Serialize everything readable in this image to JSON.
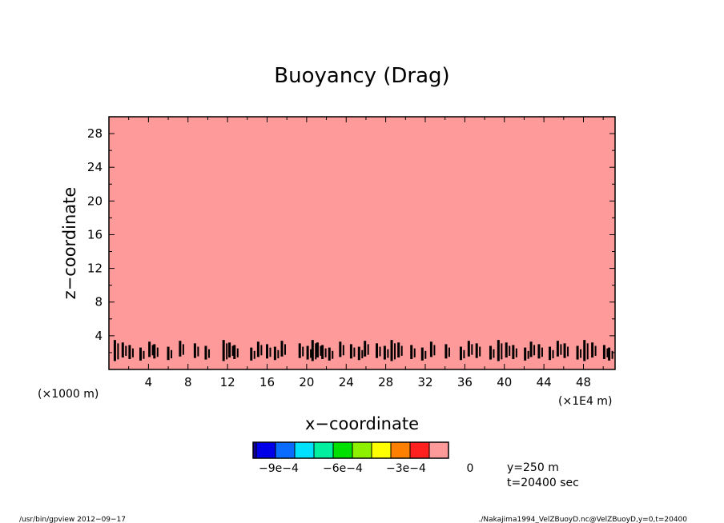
{
  "chart_data": {
    "type": "heatmap",
    "title": "Buoyancy (Drag)",
    "xlabel": "x−coordinate",
    "ylabel": "z−coordinate",
    "x_unit_left": "(×1000 m)",
    "x_unit_right": "(×1E4 m)",
    "xlim": [
      0,
      51.2
    ],
    "ylim": [
      0,
      30
    ],
    "xticks": [
      4,
      8,
      12,
      16,
      20,
      24,
      28,
      32,
      36,
      40,
      44,
      48
    ],
    "xtick_labels": [
      "4",
      "8",
      "12",
      "16",
      "20",
      "24",
      "28",
      "32",
      "36",
      "40",
      "44",
      "48"
    ],
    "yticks": [
      4,
      8,
      12,
      16,
      20,
      24,
      28
    ],
    "ytick_labels": [
      "4",
      "8",
      "12",
      "16",
      "20",
      "24",
      "28"
    ],
    "field_value": 0,
    "field_color": "#ff9a9a",
    "negative_patches": {
      "z_range": [
        1,
        3.5
      ],
      "x": [
        0.6,
        1.4,
        2.1,
        3.2,
        4.1,
        4.6,
        6.0,
        7.2,
        8.7,
        9.8,
        11.6,
        12.2,
        12.7,
        14.4,
        15.1,
        16.0,
        16.8,
        17.5,
        19.3,
        20.1,
        20.6,
        21.1,
        21.6,
        22.3,
        23.4,
        24.5,
        25.3,
        25.9,
        27.1,
        27.9,
        28.6,
        29.3,
        30.6,
        31.7,
        32.6,
        34.1,
        35.6,
        36.4,
        37.2,
        38.6,
        39.4,
        40.2,
        40.9,
        42.1,
        42.7,
        43.5,
        44.6,
        45.4,
        46.1,
        47.4,
        48.1,
        48.9,
        50.1,
        50.6
      ],
      "color": "#000000"
    },
    "colorbar": {
      "colors": [
        "#1200a0",
        "#0000e8",
        "#0a6cff",
        "#00e0ff",
        "#00f0a0",
        "#00e000",
        "#8cf000",
        "#ffff00",
        "#ff8000",
        "#ff2020",
        "#ff9a9a"
      ],
      "tick_labels": [
        "−9e−4",
        "−6e−4",
        "−3e−4",
        "0"
      ]
    },
    "annotations": [
      "y=250  m",
      "t=20400 sec"
    ]
  },
  "footer": {
    "left": "/usr/bin/gpview  2012−09−17",
    "right": "./Nakajima1994_VelZBuoyD.nc@VelZBuoyD,y=0,t=20400"
  }
}
